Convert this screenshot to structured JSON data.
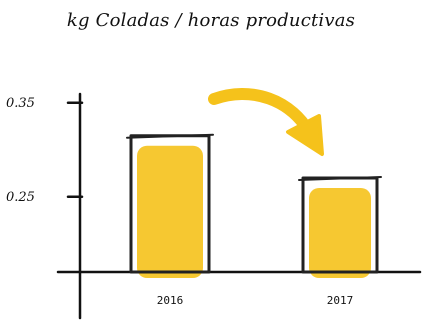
{
  "chart_data": {
    "type": "bar",
    "title": "kg Coladas / horas productivas",
    "categories": [
      "2016",
      "2017"
    ],
    "values": [
      0.315,
      0.27
    ],
    "y_ticks": [
      {
        "value": 0.35,
        "label": "0.35"
      },
      {
        "value": 0.25,
        "label": "0.25"
      }
    ],
    "ylim": [
      0.17,
      0.37
    ],
    "xlabel": "",
    "ylabel": "",
    "grid": false,
    "annotations": [
      {
        "type": "arrow",
        "from": "2016",
        "to": "2017",
        "meaning": "decrease"
      }
    ]
  },
  "colors": {
    "bar_fill": "#f5c21b",
    "bar_outline": "#222222",
    "axis": "#111111",
    "arrow": "#f5c21b",
    "text": "#111111"
  }
}
